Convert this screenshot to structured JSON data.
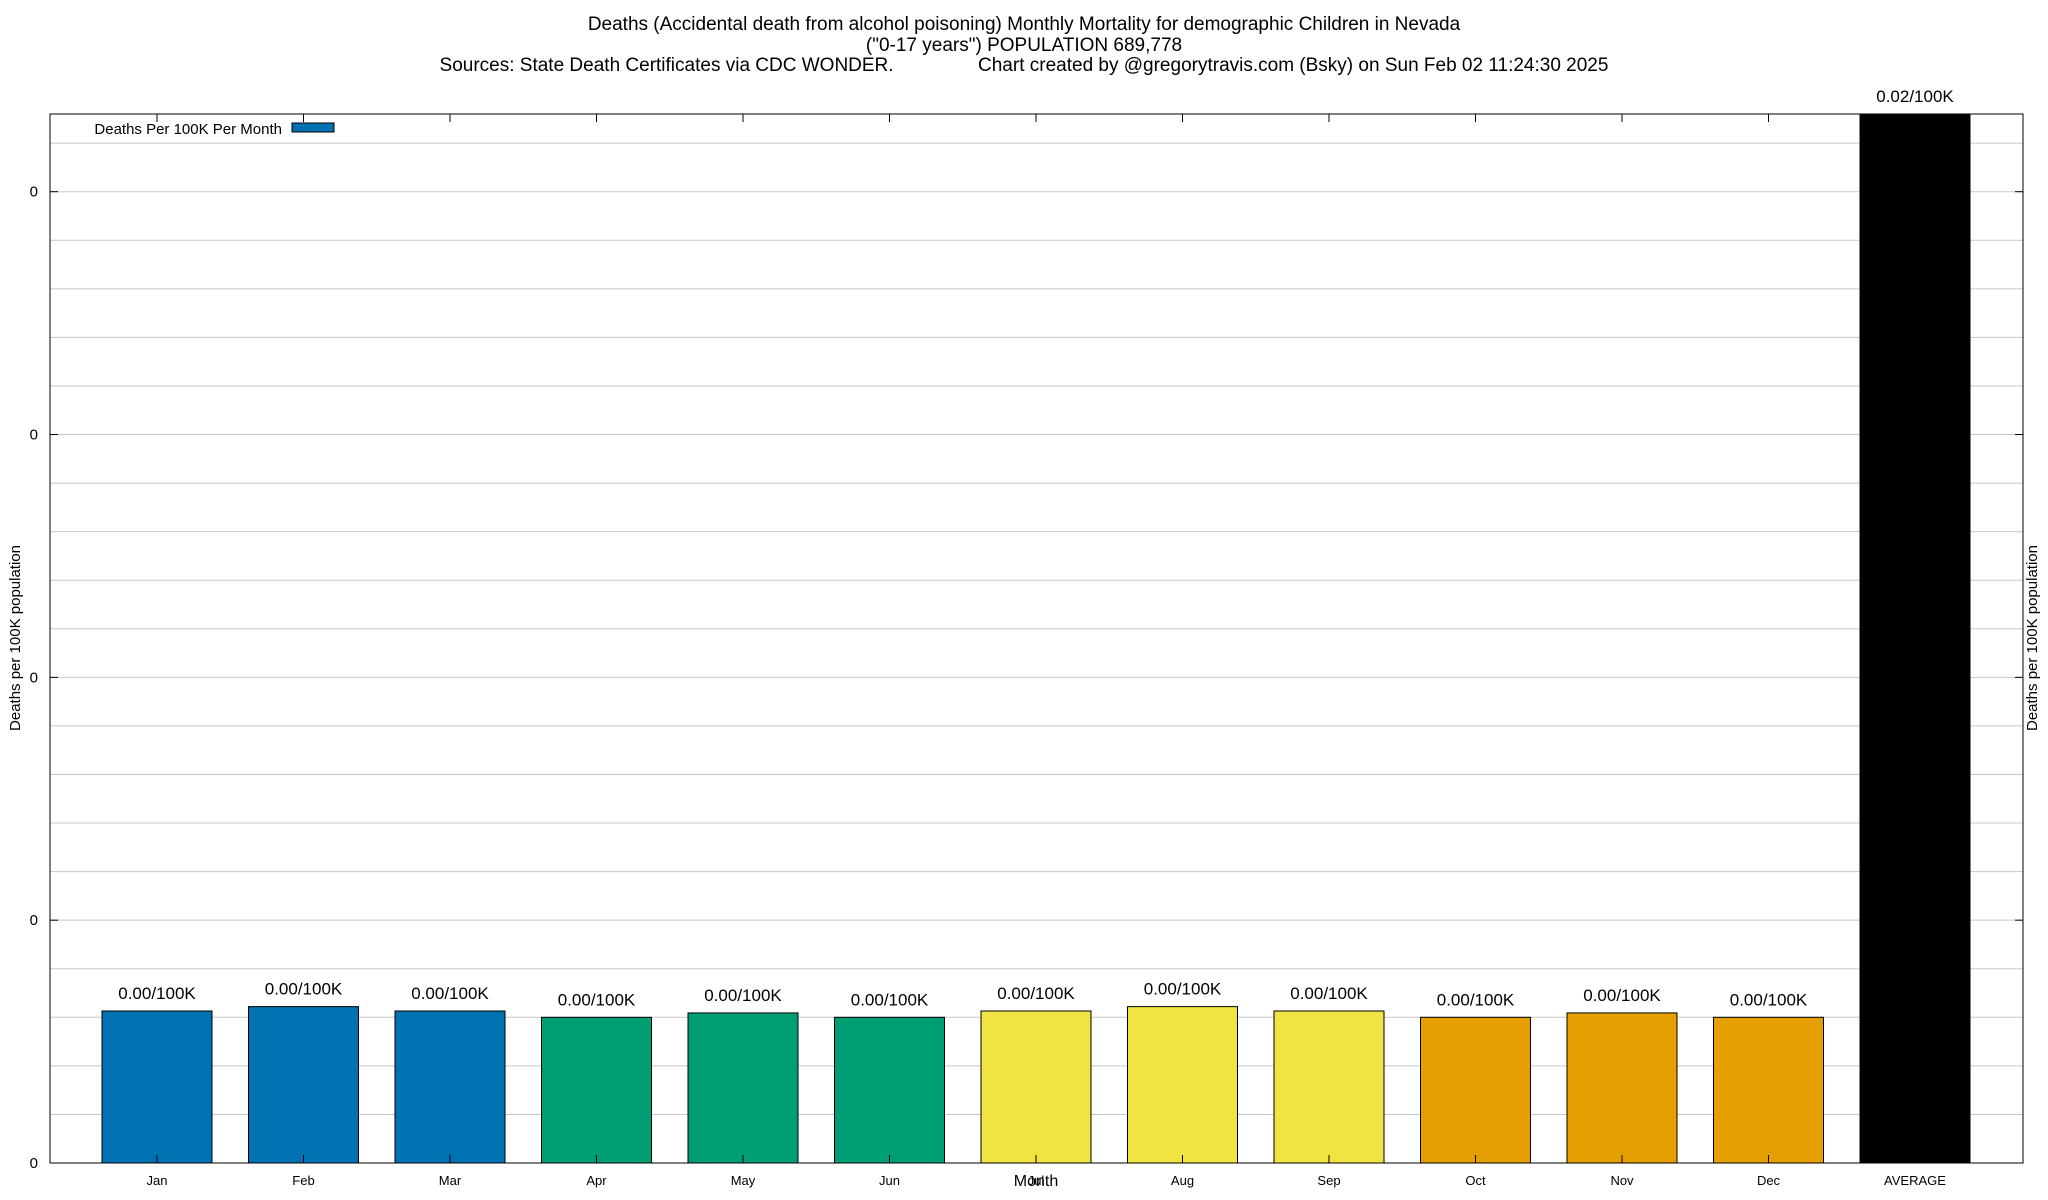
{
  "chart_data": {
    "type": "bar",
    "title_lines": [
      "Deaths (Accidental death from alcohol poisoning) Monthly Mortality for demographic Children in Nevada",
      "(\"0-17 years\") POPULATION 689,778",
      "Sources: State Death Certificates via CDC WONDER.                Chart created by @gregorytravis.com (Bsky) on Sun Feb 02 11:24:30 2025"
    ],
    "xlabel": "Month",
    "ylabel_left": "Deaths per 100K population",
    "ylabel_right": "Deaths per 100K population",
    "legend": {
      "label": "Deaths Per 100K Per Month",
      "color": "#0072b2",
      "position": "top-left"
    },
    "grid": true,
    "ylim": [
      0,
      0.0216
    ],
    "yticks": [
      {
        "value": 0,
        "label": "0"
      },
      {
        "value": 0.005,
        "label": "0"
      },
      {
        "value": 0.01,
        "label": "0"
      },
      {
        "value": 0.015,
        "label": "0"
      },
      {
        "value": 0.02,
        "label": "0"
      }
    ],
    "categories": [
      "Jan",
      "Feb",
      "Mar",
      "Apr",
      "May",
      "Jun",
      "Jul",
      "Aug",
      "Sep",
      "Oct",
      "Nov",
      "Dec",
      "AVERAGE"
    ],
    "values": [
      0.00313,
      0.00322,
      0.00313,
      0.003,
      0.00309,
      0.003,
      0.00313,
      0.00322,
      0.00313,
      0.003,
      0.00309,
      0.003,
      0.0216
    ],
    "value_labels": [
      "0.00/100K",
      "0.00/100K",
      "0.00/100K",
      "0.00/100K",
      "0.00/100K",
      "0.00/100K",
      "0.00/100K",
      "0.00/100K",
      "0.00/100K",
      "0.00/100K",
      "0.00/100K",
      "0.00/100K",
      "0.02/100K"
    ],
    "colors": [
      "#0072b2",
      "#0072b2",
      "#0072b2",
      "#009e73",
      "#009e73",
      "#009e73",
      "#f0e442",
      "#f0e442",
      "#f0e442",
      "#e69f00",
      "#e69f00",
      "#e69f00",
      "#000000"
    ]
  }
}
